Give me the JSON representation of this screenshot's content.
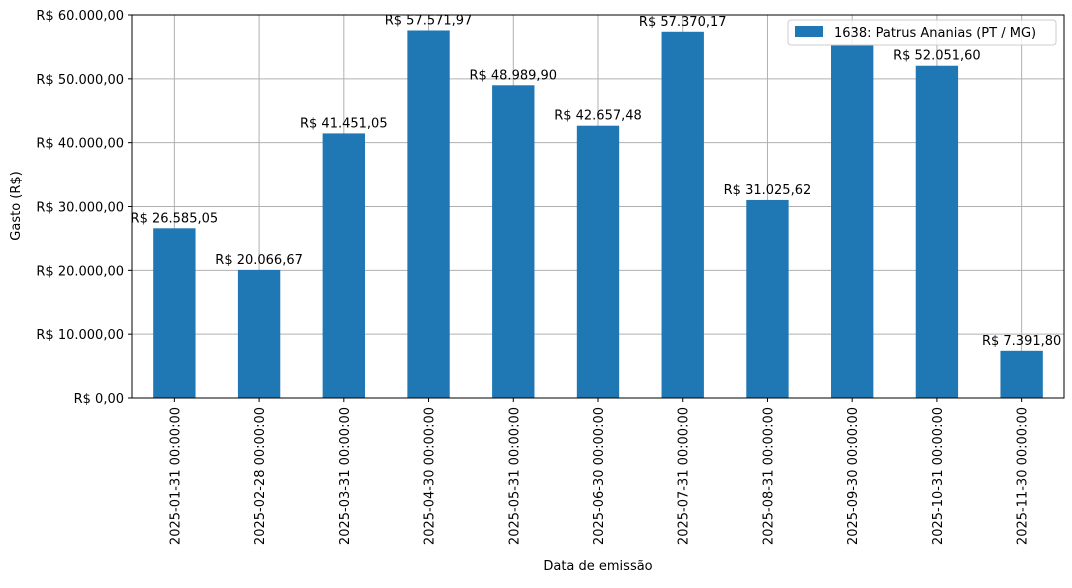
{
  "chart_data": {
    "type": "bar",
    "categories": [
      "2025-01-31 00:00:00",
      "2025-02-28 00:00:00",
      "2025-03-31 00:00:00",
      "2025-04-30 00:00:00",
      "2025-05-31 00:00:00",
      "2025-06-30 00:00:00",
      "2025-07-31 00:00:00",
      "2025-08-31 00:00:00",
      "2025-09-30 00:00:00",
      "2025-10-31 00:00:00",
      "2025-11-30 00:00:00"
    ],
    "series": [
      {
        "name": "1638: Patrus Ananias (PT / MG)",
        "values": [
          26585.05,
          20066.67,
          41451.05,
          57571.97,
          48989.9,
          42657.48,
          57370.17,
          31025.62,
          55300.0,
          52051.6,
          7391.8
        ],
        "labels": [
          "R$ 26.585,05",
          "R$ 20.066,67",
          "R$ 41.451,05",
          "R$ 57.571,97",
          "R$ 48.989,90",
          "R$ 42.657,48",
          "R$ 57.370,17",
          "R$ 31.025,62",
          "",
          "R$ 52.051,60",
          "R$ 7.391,80"
        ]
      }
    ],
    "title": "",
    "xlabel": "Data de emissão",
    "ylabel": "Gasto (R$)",
    "ylim": [
      0,
      60000
    ],
    "yticks": [
      0,
      10000,
      20000,
      30000,
      40000,
      50000,
      60000
    ],
    "ytick_labels": [
      "R$ 0,00",
      "R$ 10.000,00",
      "R$ 20.000,00",
      "R$ 30.000,00",
      "R$ 40.000,00",
      "R$ 50.000,00",
      "R$ 60.000,00"
    ],
    "grid": true,
    "legend_position": "top-right",
    "bar_color": "#1f77b4",
    "grid_color": "#b0b0b0"
  }
}
